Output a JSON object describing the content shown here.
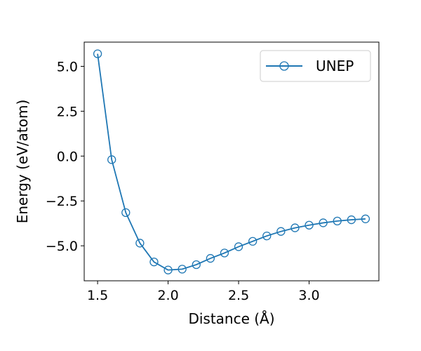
{
  "chart_data": {
    "type": "line",
    "title": "",
    "xlabel": "Distance (Å)",
    "ylabel": "Energy (eV/atom)",
    "xlim": [
      1.405,
      3.495
    ],
    "ylim": [
      -6.95,
      6.35
    ],
    "xticks": [
      1.5,
      2.0,
      2.5,
      3.0
    ],
    "xtick_labels": [
      "1.5",
      "2.0",
      "2.5",
      "3.0"
    ],
    "yticks": [
      5.0,
      2.5,
      0.0,
      -2.5,
      -5.0
    ],
    "ytick_labels": [
      "5.0",
      "2.5",
      "0.0",
      "−2.5",
      "−5.0"
    ],
    "grid": false,
    "legend_position": "top-right",
    "series": [
      {
        "name": "UNEP",
        "color": "#1f77b4",
        "marker": "open-circle",
        "x": [
          1.5,
          1.6,
          1.7,
          1.8,
          1.9,
          2.0,
          2.1,
          2.2,
          2.3,
          2.4,
          2.5,
          2.6,
          2.7,
          2.8,
          2.9,
          3.0,
          3.1,
          3.2,
          3.3,
          3.4
        ],
        "y": [
          5.7,
          -0.2,
          -3.15,
          -4.85,
          -5.9,
          -6.35,
          -6.3,
          -6.05,
          -5.7,
          -5.4,
          -5.05,
          -4.75,
          -4.45,
          -4.2,
          -4.0,
          -3.85,
          -3.72,
          -3.62,
          -3.55,
          -3.5
        ]
      }
    ]
  }
}
